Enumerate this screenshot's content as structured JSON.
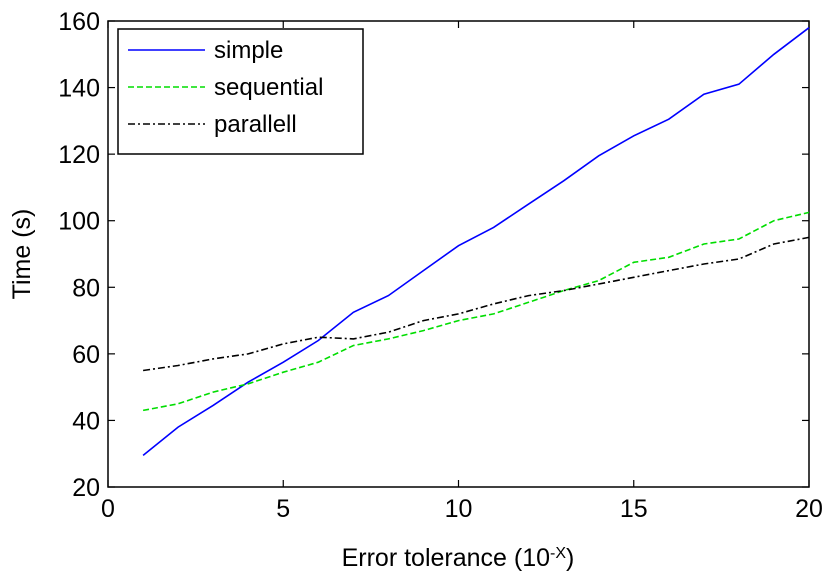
{
  "chart_data": {
    "type": "line",
    "title": "",
    "xlabel": "Error tolerance (10",
    "xlabel_superscript": "-X",
    "xlabel_suffix": ")",
    "ylabel": "Time (s)",
    "xlim": [
      0,
      20
    ],
    "ylim": [
      20,
      160
    ],
    "xticks": [
      0,
      5,
      10,
      15,
      20
    ],
    "yticks": [
      20,
      40,
      60,
      80,
      100,
      120,
      140,
      160
    ],
    "grid": false,
    "legend_position": "top-left",
    "x": [
      1,
      2,
      3,
      4,
      5,
      6,
      7,
      8,
      9,
      10,
      11,
      12,
      13,
      14,
      15,
      16,
      17,
      18,
      19,
      20
    ],
    "series": [
      {
        "name": "simple",
        "color": "#0000ff",
        "dash": "solid",
        "values": [
          29.5,
          38,
          44.5,
          51.5,
          57.5,
          64,
          72.5,
          77.5,
          85,
          92.5,
          98,
          105,
          112,
          119.5,
          125.5,
          130.5,
          138,
          141,
          150,
          158
        ]
      },
      {
        "name": "sequential",
        "color": "#00dd00",
        "dash": "dashed",
        "values": [
          43,
          45,
          48.5,
          51,
          54.5,
          57.5,
          62.5,
          64.5,
          67,
          70,
          72,
          75.5,
          79,
          82,
          87.5,
          89,
          93,
          94.5,
          100,
          102.5
        ]
      },
      {
        "name": "parallell",
        "color": "#000000",
        "dash": "dashdot",
        "values": [
          55,
          56.5,
          58.5,
          60,
          63,
          65,
          64.5,
          66.5,
          70,
          72,
          75,
          77.5,
          79,
          81,
          83,
          85,
          87,
          88.5,
          93,
          95
        ]
      }
    ]
  }
}
